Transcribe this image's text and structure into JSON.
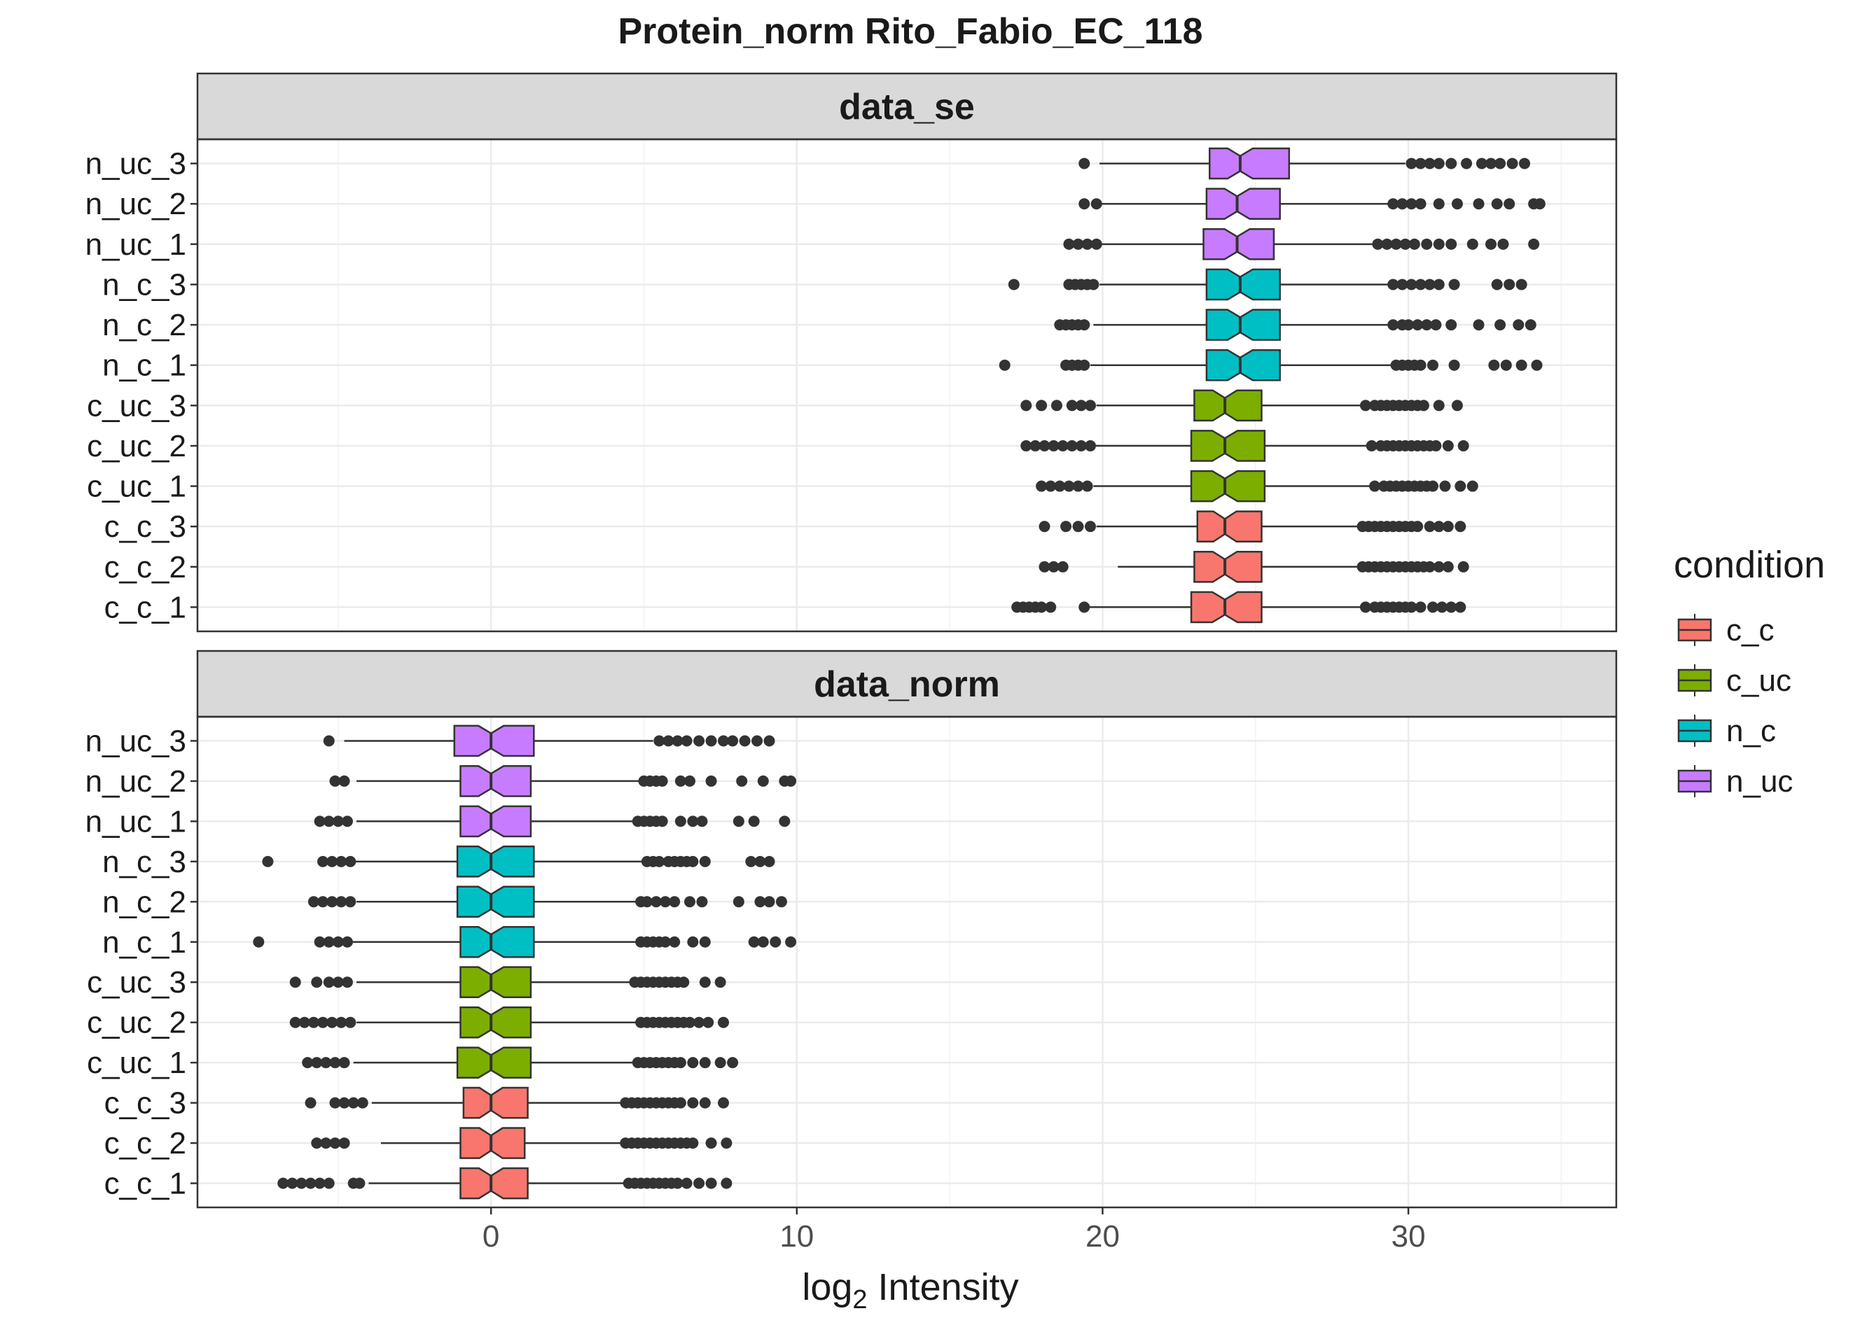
{
  "chart_data": {
    "type": "boxplot",
    "title": "Protein_norm Rito_Fabio_EC_118",
    "xlabel": {
      "prefix": "log",
      "subscript": "2",
      "suffix": " Intensity"
    },
    "xlim": [
      -9.6,
      36.8
    ],
    "xticks": [
      0,
      10,
      20,
      30
    ],
    "xtick_labels": [
      "0",
      "10",
      "20",
      "30"
    ],
    "grid": true,
    "legend": {
      "title": "condition",
      "position": "right",
      "items": [
        {
          "label": "c_c",
          "color": "#F8766D"
        },
        {
          "label": "c_uc",
          "color": "#7CAE00"
        },
        {
          "label": "n_c",
          "color": "#00BFC4"
        },
        {
          "label": "n_uc",
          "color": "#C77CFF"
        }
      ]
    },
    "panels": [
      {
        "strip": "data_se",
        "boxes": [
          {
            "sample": "c_c_1",
            "condition": "c_c",
            "whisker_low": 19.5,
            "q1": 22.9,
            "median": 24.0,
            "q3": 25.2,
            "whisker_high": 28.5,
            "outliers": [
              17.2,
              17.4,
              17.6,
              17.8,
              18.0,
              18.3,
              19.4,
              28.6,
              28.9,
              29.1,
              29.3,
              29.5,
              29.7,
              29.9,
              30.1,
              30.4,
              30.8,
              31.1,
              31.4,
              31.7
            ]
          },
          {
            "sample": "c_c_2",
            "condition": "c_c",
            "whisker_low": 20.5,
            "q1": 23.0,
            "median": 24.0,
            "q3": 25.2,
            "whisker_high": 28.4,
            "outliers": [
              18.1,
              18.4,
              18.7,
              28.5,
              28.7,
              28.9,
              29.1,
              29.3,
              29.5,
              29.7,
              29.9,
              30.1,
              30.3,
              30.5,
              30.7,
              31.0,
              31.3,
              31.8
            ]
          },
          {
            "sample": "c_c_3",
            "condition": "c_c",
            "whisker_low": 19.8,
            "q1": 23.1,
            "median": 24.0,
            "q3": 25.2,
            "whisker_high": 28.4,
            "outliers": [
              18.1,
              18.8,
              19.2,
              19.6,
              28.5,
              28.7,
              28.9,
              29.1,
              29.3,
              29.5,
              29.7,
              29.9,
              30.1,
              30.3,
              30.7,
              31.0,
              31.3,
              31.7
            ]
          },
          {
            "sample": "c_uc_1",
            "condition": "c_uc",
            "whisker_low": 19.7,
            "q1": 22.9,
            "median": 24.0,
            "q3": 25.3,
            "whisker_high": 28.8,
            "outliers": [
              18.0,
              18.3,
              18.6,
              18.9,
              19.2,
              19.5,
              28.9,
              29.2,
              29.4,
              29.6,
              29.8,
              30.0,
              30.2,
              30.4,
              30.6,
              30.8,
              31.2,
              31.7,
              32.1
            ]
          },
          {
            "sample": "c_uc_2",
            "condition": "c_uc",
            "whisker_low": 19.7,
            "q1": 22.9,
            "median": 24.0,
            "q3": 25.3,
            "whisker_high": 28.7,
            "outliers": [
              17.5,
              17.8,
              18.1,
              18.4,
              18.7,
              19.0,
              19.3,
              19.6,
              28.8,
              29.1,
              29.3,
              29.5,
              29.7,
              29.9,
              30.1,
              30.3,
              30.5,
              30.7,
              30.9,
              31.3,
              31.8
            ]
          },
          {
            "sample": "c_uc_3",
            "condition": "c_uc",
            "whisker_low": 19.8,
            "q1": 23.0,
            "median": 24.0,
            "q3": 25.2,
            "whisker_high": 28.5,
            "outliers": [
              17.5,
              18.0,
              18.5,
              19.0,
              19.3,
              19.6,
              28.6,
              28.9,
              29.1,
              29.3,
              29.5,
              29.7,
              29.9,
              30.1,
              30.3,
              30.5,
              31.0,
              31.6
            ]
          },
          {
            "sample": "n_c_1",
            "condition": "n_c",
            "whisker_low": 19.6,
            "q1": 23.4,
            "median": 24.5,
            "q3": 25.8,
            "whisker_high": 29.5,
            "outliers": [
              16.8,
              18.8,
              19.0,
              19.2,
              19.4,
              29.6,
              29.8,
              30.0,
              30.2,
              30.4,
              30.8,
              31.5,
              32.8,
              33.2,
              33.7,
              34.2
            ]
          },
          {
            "sample": "n_c_2",
            "condition": "n_c",
            "whisker_low": 19.7,
            "q1": 23.4,
            "median": 24.5,
            "q3": 25.8,
            "whisker_high": 29.4,
            "outliers": [
              18.6,
              18.8,
              19.0,
              19.2,
              19.4,
              29.5,
              29.8,
              30.0,
              30.3,
              30.6,
              30.9,
              31.4,
              32.3,
              33.0,
              33.6,
              34.0
            ]
          },
          {
            "sample": "n_c_3",
            "condition": "n_c",
            "whisker_low": 19.9,
            "q1": 23.4,
            "median": 24.5,
            "q3": 25.8,
            "whisker_high": 29.4,
            "outliers": [
              17.1,
              18.9,
              19.1,
              19.3,
              19.5,
              19.7,
              29.5,
              29.8,
              30.1,
              30.4,
              30.7,
              31.0,
              31.5,
              32.9,
              33.3,
              33.7
            ]
          },
          {
            "sample": "n_uc_1",
            "condition": "n_uc",
            "whisker_low": 19.9,
            "q1": 23.3,
            "median": 24.4,
            "q3": 25.6,
            "whisker_high": 28.9,
            "outliers": [
              18.9,
              19.2,
              19.5,
              19.8,
              29.0,
              29.3,
              29.6,
              29.9,
              30.2,
              30.6,
              31.0,
              31.4,
              32.1,
              32.7,
              33.1,
              34.1
            ]
          },
          {
            "sample": "n_uc_2",
            "condition": "n_uc",
            "whisker_low": 19.9,
            "q1": 23.4,
            "median": 24.4,
            "q3": 25.8,
            "whisker_high": 29.4,
            "outliers": [
              19.4,
              19.8,
              29.5,
              29.8,
              30.1,
              30.4,
              31.0,
              31.6,
              32.3,
              32.9,
              33.3,
              34.1,
              34.3
            ]
          },
          {
            "sample": "n_uc_3",
            "condition": "n_uc",
            "whisker_low": 19.9,
            "q1": 23.5,
            "median": 24.5,
            "q3": 26.1,
            "whisker_high": 29.9,
            "outliers": [
              19.4,
              30.1,
              30.4,
              30.7,
              31.0,
              31.4,
              31.9,
              32.4,
              32.7,
              33.0,
              33.4,
              33.8
            ]
          }
        ]
      },
      {
        "strip": "data_norm",
        "boxes": [
          {
            "sample": "c_c_1",
            "condition": "c_c",
            "whisker_low": -4.0,
            "q1": -1.0,
            "median": 0.0,
            "q3": 1.2,
            "whisker_high": 4.4,
            "outliers": [
              -6.8,
              -6.5,
              -6.2,
              -5.9,
              -5.6,
              -5.3,
              -4.5,
              -4.3,
              4.5,
              4.7,
              4.9,
              5.1,
              5.3,
              5.5,
              5.7,
              5.9,
              6.1,
              6.4,
              6.8,
              7.2,
              7.7
            ]
          },
          {
            "sample": "c_c_2",
            "condition": "c_c",
            "whisker_low": -3.6,
            "q1": -1.0,
            "median": 0.0,
            "q3": 1.1,
            "whisker_high": 4.3,
            "outliers": [
              -5.7,
              -5.4,
              -5.1,
              -4.8,
              4.4,
              4.6,
              4.8,
              5.0,
              5.2,
              5.4,
              5.6,
              5.8,
              6.0,
              6.2,
              6.4,
              6.6,
              7.2,
              7.7
            ]
          },
          {
            "sample": "c_c_3",
            "condition": "c_c",
            "whisker_low": -3.9,
            "q1": -0.9,
            "median": 0.0,
            "q3": 1.2,
            "whisker_high": 4.3,
            "outliers": [
              -5.9,
              -5.1,
              -4.8,
              -4.5,
              -4.2,
              4.4,
              4.6,
              4.8,
              5.0,
              5.2,
              5.4,
              5.6,
              5.8,
              6.0,
              6.2,
              6.6,
              7.0,
              7.6
            ]
          },
          {
            "sample": "c_uc_1",
            "condition": "c_uc",
            "whisker_low": -4.5,
            "q1": -1.1,
            "median": 0.0,
            "q3": 1.3,
            "whisker_high": 4.7,
            "outliers": [
              -6.0,
              -5.7,
              -5.4,
              -5.1,
              -4.8,
              4.8,
              5.0,
              5.2,
              5.4,
              5.6,
              5.8,
              6.0,
              6.2,
              6.6,
              7.0,
              7.5,
              7.9
            ]
          },
          {
            "sample": "c_uc_2",
            "condition": "c_uc",
            "whisker_low": -4.4,
            "q1": -1.0,
            "median": 0.0,
            "q3": 1.3,
            "whisker_high": 4.8,
            "outliers": [
              -6.4,
              -6.1,
              -5.8,
              -5.5,
              -5.2,
              -4.9,
              -4.6,
              4.9,
              5.1,
              5.3,
              5.5,
              5.7,
              5.9,
              6.1,
              6.3,
              6.5,
              6.8,
              7.1,
              7.6
            ]
          },
          {
            "sample": "c_uc_3",
            "condition": "c_uc",
            "whisker_low": -4.4,
            "q1": -1.0,
            "median": 0.0,
            "q3": 1.3,
            "whisker_high": 4.6,
            "outliers": [
              -6.4,
              -5.7,
              -5.3,
              -5.0,
              -4.7,
              4.7,
              4.9,
              5.1,
              5.3,
              5.5,
              5.7,
              5.9,
              6.1,
              6.3,
              7.0,
              7.5
            ]
          },
          {
            "sample": "n_c_1",
            "condition": "n_c",
            "whisker_low": -4.6,
            "q1": -1.0,
            "median": 0.0,
            "q3": 1.4,
            "whisker_high": 4.8,
            "outliers": [
              -7.6,
              -5.6,
              -5.3,
              -5.0,
              -4.7,
              4.9,
              5.1,
              5.3,
              5.5,
              5.7,
              6.0,
              6.6,
              7.0,
              8.6,
              8.9,
              9.3,
              9.8
            ]
          },
          {
            "sample": "n_c_2",
            "condition": "n_c",
            "whisker_low": -4.4,
            "q1": -1.1,
            "median": 0.0,
            "q3": 1.4,
            "whisker_high": 4.8,
            "outliers": [
              -5.8,
              -5.5,
              -5.2,
              -4.9,
              -4.6,
              4.9,
              5.1,
              5.4,
              5.7,
              6.0,
              6.5,
              6.9,
              8.1,
              8.8,
              9.1,
              9.5
            ]
          },
          {
            "sample": "n_c_3",
            "condition": "n_c",
            "whisker_low": -4.5,
            "q1": -1.1,
            "median": 0.0,
            "q3": 1.4,
            "whisker_high": 5.0,
            "outliers": [
              -7.3,
              -5.5,
              -5.2,
              -4.9,
              -4.6,
              5.1,
              5.3,
              5.5,
              5.8,
              6.0,
              6.2,
              6.4,
              6.6,
              7.0,
              8.5,
              8.8,
              9.1
            ]
          },
          {
            "sample": "n_uc_1",
            "condition": "n_uc",
            "whisker_low": -4.4,
            "q1": -1.0,
            "median": 0.0,
            "q3": 1.3,
            "whisker_high": 4.7,
            "outliers": [
              -5.6,
              -5.3,
              -5.0,
              -4.7,
              4.8,
              5.0,
              5.2,
              5.4,
              5.6,
              6.2,
              6.6,
              6.9,
              8.1,
              8.6,
              9.6
            ]
          },
          {
            "sample": "n_uc_2",
            "condition": "n_uc",
            "whisker_low": -4.4,
            "q1": -1.0,
            "median": 0.0,
            "q3": 1.3,
            "whisker_high": 4.9,
            "outliers": [
              -5.1,
              -4.8,
              5.0,
              5.2,
              5.4,
              5.6,
              6.2,
              6.5,
              7.2,
              8.2,
              8.9,
              9.6,
              9.8
            ]
          },
          {
            "sample": "n_uc_3",
            "condition": "n_uc",
            "whisker_low": -4.8,
            "q1": -1.2,
            "median": 0.0,
            "q3": 1.4,
            "whisker_high": 5.3,
            "outliers": [
              -5.3,
              5.5,
              5.8,
              6.1,
              6.4,
              6.8,
              7.2,
              7.6,
              7.9,
              8.3,
              8.7,
              9.1
            ]
          }
        ]
      }
    ]
  }
}
